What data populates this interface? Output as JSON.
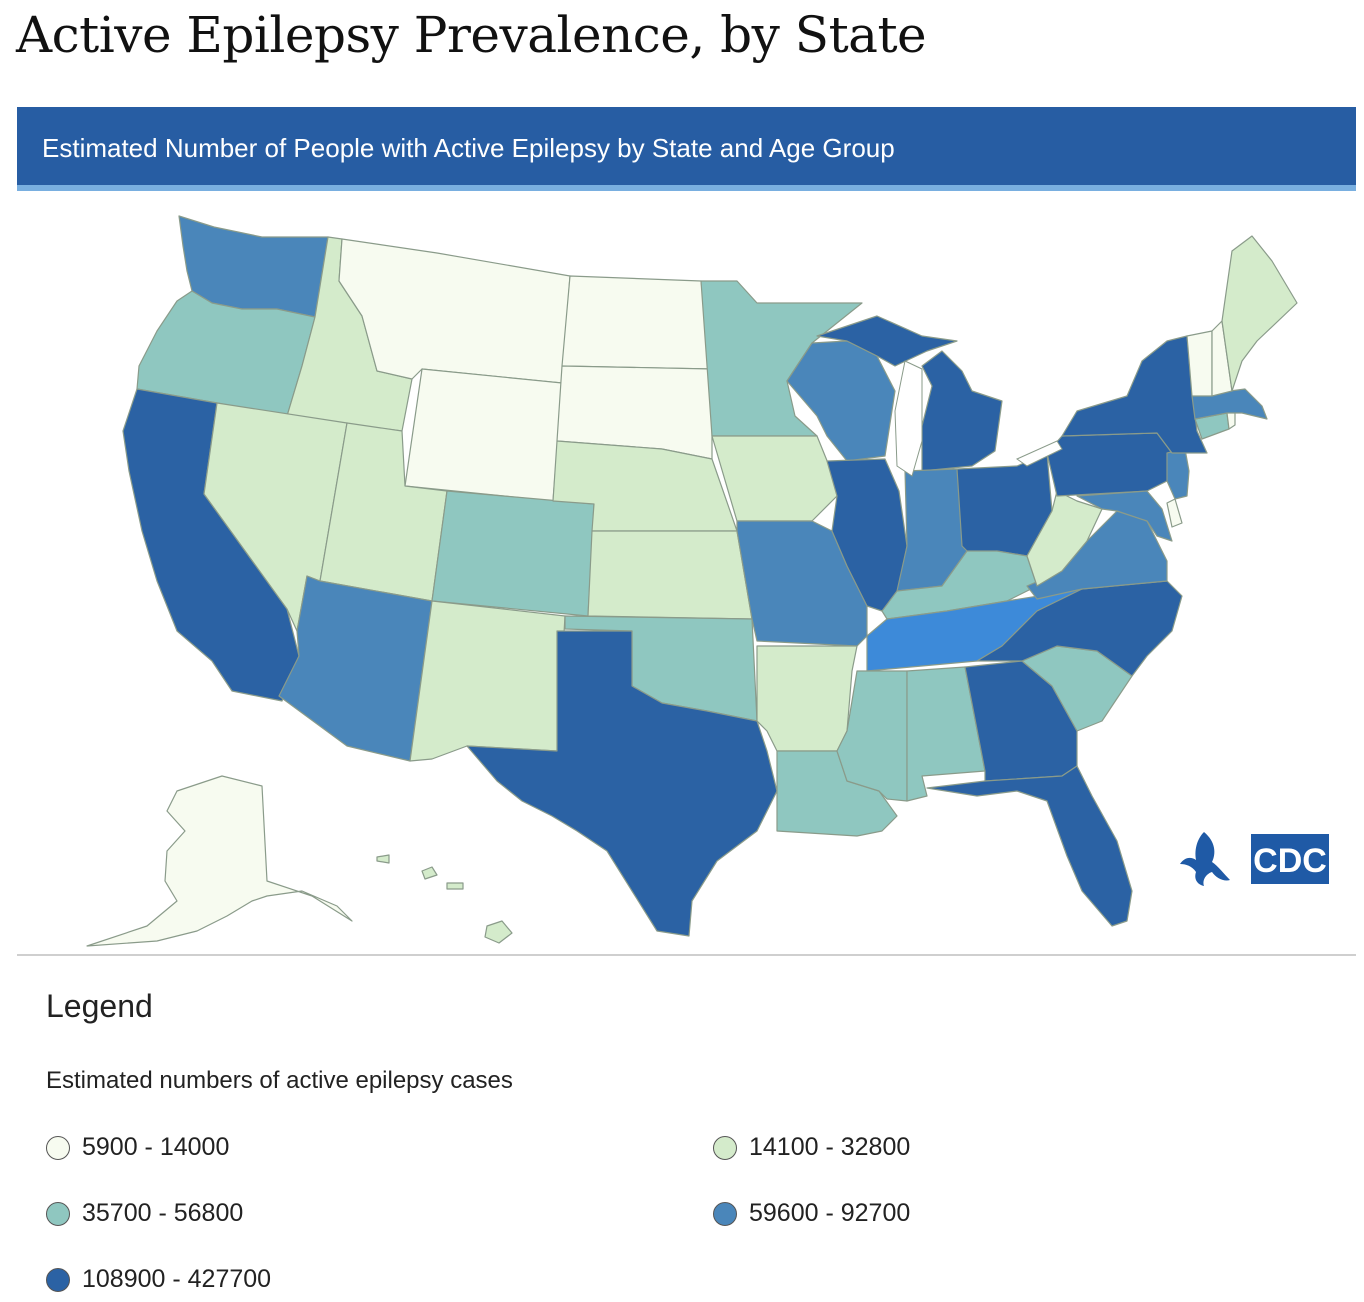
{
  "page": {
    "title": "Active Epilepsy Prevalence, by State"
  },
  "banner": {
    "text": "Estimated Number of People with Active Epilepsy by State and Age Group"
  },
  "colors": {
    "bin1": "#f7fbf0",
    "bin2": "#d4ebcb",
    "bin3": "#8fc7c0",
    "bin4": "#4a86ba",
    "bin5": "#2b62a4",
    "highlight": "#3d8ad9",
    "border": "#8a9b8a"
  },
  "legend": {
    "title": "Legend",
    "subtitle": "Estimated numbers of active epilepsy cases",
    "items": [
      {
        "label": "5900 - 14000",
        "color": "#f7fbf0"
      },
      {
        "label": "14100 - 32800",
        "color": "#d4ebcb"
      },
      {
        "label": "35700 - 56800",
        "color": "#8fc7c0"
      },
      {
        "label": "59600 - 92700",
        "color": "#4a86ba"
      },
      {
        "label": "108900 - 427700",
        "color": "#2b62a4"
      }
    ]
  },
  "logo": {
    "text": "CDC",
    "icon": "hhs-eagle-icon"
  }
}
